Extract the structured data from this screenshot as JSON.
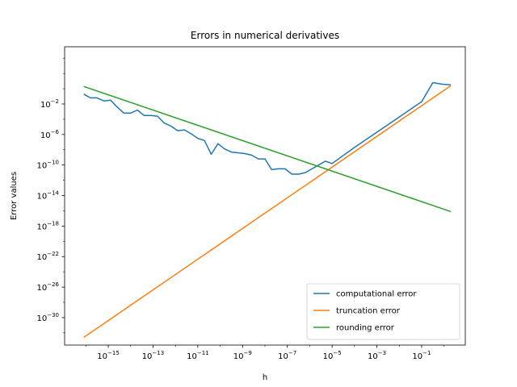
{
  "chart_data": {
    "type": "line",
    "title": "Errors in numerical derivatives",
    "xlabel": "h",
    "ylabel": "Error values",
    "xscale": "log",
    "yscale": "log",
    "xlim_exp": [
      -16.95,
      0.95
    ],
    "ylim_exp": [
      -33.6,
      5.5
    ],
    "x_ticks": [
      {
        "base": "10",
        "exp": "−15",
        "value": -15
      },
      {
        "base": "10",
        "exp": "−13",
        "value": -13
      },
      {
        "base": "10",
        "exp": "−11",
        "value": -11
      },
      {
        "base": "10",
        "exp": "−9",
        "value": -9
      },
      {
        "base": "10",
        "exp": "−7",
        "value": -7
      },
      {
        "base": "10",
        "exp": "−5",
        "value": -5
      },
      {
        "base": "10",
        "exp": "−3",
        "value": -3
      },
      {
        "base": "10",
        "exp": "−1",
        "value": -1
      }
    ],
    "y_ticks": [
      {
        "base": "10",
        "exp": "−2",
        "value": -2
      },
      {
        "base": "10",
        "exp": "−6",
        "value": -6
      },
      {
        "base": "10",
        "exp": "−10",
        "value": -10
      },
      {
        "base": "10",
        "exp": "−14",
        "value": -14
      },
      {
        "base": "10",
        "exp": "−18",
        "value": -18
      },
      {
        "base": "10",
        "exp": "−22",
        "value": -22
      },
      {
        "base": "10",
        "exp": "−26",
        "value": -26
      },
      {
        "base": "10",
        "exp": "−30",
        "value": -30
      }
    ],
    "legend_position": "lower-right",
    "grid": false,
    "series": [
      {
        "name": "computational error",
        "color": "#1f77b4",
        "x_log10": [
          -16.1,
          -15.8,
          -15.5,
          -15.2,
          -14.9,
          -14.6,
          -14.3,
          -14.0,
          -13.7,
          -13.4,
          -13.1,
          -12.8,
          -12.5,
          -12.2,
          -11.9,
          -11.6,
          -11.3,
          -11.0,
          -10.7,
          -10.4,
          -10.1,
          -9.8,
          -9.5,
          -9.2,
          -8.9,
          -8.6,
          -8.3,
          -8.0,
          -7.7,
          -7.4,
          -7.1,
          -6.8,
          -6.5,
          -6.2,
          -5.9,
          -5.6,
          -5.3,
          -5.0,
          -4.0,
          -3.0,
          -2.0,
          -1.0,
          -0.5,
          -0.1,
          0.3
        ],
        "y_log10": [
          -0.7,
          -1.2,
          -1.2,
          -1.6,
          -1.5,
          -2.4,
          -3.2,
          -3.2,
          -2.8,
          -3.5,
          -3.5,
          -3.6,
          -4.5,
          -4.9,
          -5.5,
          -5.4,
          -5.9,
          -6.5,
          -6.8,
          -8.6,
          -7.2,
          -7.9,
          -8.3,
          -8.4,
          -8.5,
          -8.7,
          -9.2,
          -9.2,
          -10.6,
          -10.5,
          -10.5,
          -11.2,
          -11.2,
          -10.7,
          -10.3,
          -10.1,
          -9.8,
          -9.7,
          -7.7,
          -5.7,
          -3.7,
          -1.7,
          0.8,
          0.6,
          0.5
        ],
        "y_log10_corrected": [
          -0.7,
          -1.2,
          -1.2,
          -1.6,
          -1.5,
          -2.4,
          -3.2,
          -3.2,
          -2.8,
          -3.5,
          -3.5,
          -3.6,
          -4.5,
          -4.9,
          -5.5,
          -5.4,
          -5.9,
          -6.5,
          -6.8,
          -8.6,
          -7.2,
          -7.9,
          -8.3,
          -8.4,
          -8.5,
          -8.7,
          -9.2,
          -9.2,
          -10.6,
          -10.5,
          -10.5,
          -11.2,
          -11.2,
          -11.0,
          -10.5,
          -10.0,
          -9.5,
          -9.8,
          -7.7,
          -5.7,
          -3.7,
          -1.7,
          0.8,
          0.6,
          0.5
        ]
      },
      {
        "name": "truncation error",
        "color": "#ff7f0e",
        "x_log10": [
          -16.1,
          0.3
        ],
        "y_log10": [
          -32.6,
          0.4
        ]
      },
      {
        "name": "rounding error",
        "color": "#2ca02c",
        "x_log10": [
          -16.1,
          0.3
        ],
        "y_log10": [
          0.3,
          -16.1
        ]
      }
    ]
  }
}
